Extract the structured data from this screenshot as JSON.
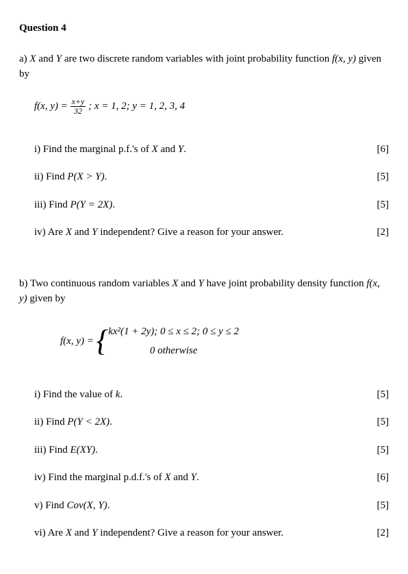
{
  "title": "Question 4",
  "partA": {
    "intro_pre": "a) ",
    "intro_mid": " and ",
    "intro_post": " are two discrete random variables with joint probability function ",
    "intro_end": " given by",
    "var_x": "X",
    "var_y": "Y",
    "fxy": "f(x, y)",
    "eq_lhs": "f(x, y) = ",
    "frac_num": "x+y",
    "frac_den": "32",
    "eq_domain": " ; x = 1, 2; y = 1, 2, 3, 4",
    "items": [
      {
        "label": "i)  Find the marginal p.f.'s of ",
        "v1": "X",
        "mid": " and ",
        "v2": "Y",
        "post": ".",
        "marks": "[6]"
      },
      {
        "label": "ii) Find ",
        "expr": "P(X > Y)",
        "post": ".",
        "marks": "[5]"
      },
      {
        "label": "iii) Find ",
        "expr": "P(Y = 2X)",
        "post": ".",
        "marks": "[5]"
      },
      {
        "label": "iv) Are ",
        "v1": "X",
        "mid": " and ",
        "v2": "Y",
        "post": " independent? Give a reason for your answer.",
        "marks": "[2]"
      }
    ]
  },
  "partB": {
    "intro_pre": "b) Two continuous random variables ",
    "var_x": "X",
    "intro_mid": " and ",
    "var_y": "Y",
    "intro_post": " have joint probability density function ",
    "fxy": "f(x, y)",
    "intro_end": " given by",
    "eq_lhs": "f(x, y) = ",
    "case1": "kx²(1 + 2y);  0 ≤ x ≤ 2;  0 ≤ y ≤ 2",
    "case2": "0 otherwise",
    "items": [
      {
        "label": "i)   Find the value of ",
        "expr": "k",
        "post": ".",
        "marks": "[5]"
      },
      {
        "label": "ii)  Find ",
        "expr": "P(Y < 2X)",
        "post": ".",
        "marks": "[5]"
      },
      {
        "label": "iii) Find ",
        "expr": "E(XY)",
        "post": ".",
        "marks": "[5]"
      },
      {
        "label": "iv) Find the marginal p.d.f.'s of ",
        "v1": "X",
        "mid": " and ",
        "v2": "Y",
        "post": ".",
        "marks": "[6]"
      },
      {
        "label": "v)  Find ",
        "expr": "Cov(X, Y)",
        "post": ".",
        "marks": "[5]"
      },
      {
        "label": "vi) Are ",
        "v1": "X",
        "mid": " and ",
        "v2": "Y",
        "post": " independent? Give a reason for your answer.",
        "marks": "[2]"
      }
    ]
  }
}
